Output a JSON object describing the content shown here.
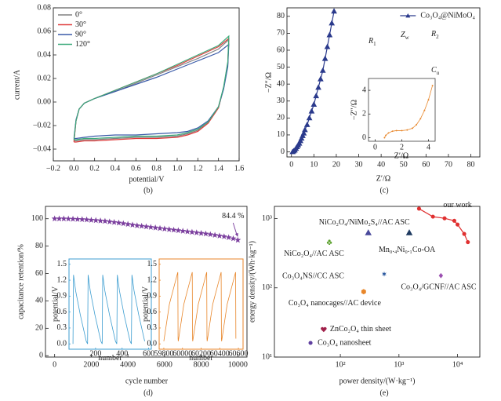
{
  "chart_data": [
    {
      "type": "line",
      "caption": "(b)",
      "xlabel": "potential/V",
      "ylabel": "current/A",
      "xlim": [
        -0.2,
        1.6
      ],
      "ylim": [
        -0.05,
        0.08
      ],
      "xticks": [
        {
          "value": -0.2,
          "label": "−0.2"
        },
        {
          "value": 0,
          "label": "0.0"
        },
        0.2,
        0.4,
        0.6,
        0.8,
        {
          "value": 1,
          "label": "1.0"
        },
        1.2,
        1.4,
        1.6
      ],
      "yticks": [
        {
          "value": -0.04,
          "label": "−0.04"
        },
        {
          "value": -0.02,
          "label": "−0.02"
        },
        {
          "value": 0,
          "label": "0.00"
        },
        0.02,
        0.04,
        0.06,
        0.08
      ],
      "legend": "upper left",
      "x": [
        0,
        0.02,
        0.05,
        0.1,
        0.2,
        0.4,
        0.6,
        0.8,
        1.0,
        1.2,
        1.4,
        1.5,
        1.49,
        1.45,
        1.4,
        1.3,
        1.2,
        1.1,
        1.0,
        0.8,
        0.6,
        0.4,
        0.2,
        0.1,
        0.02,
        0
      ],
      "series": [
        {
          "name": "0°",
          "color": "#808080",
          "line": true,
          "values": [
            -0.033,
            -0.016,
            -0.006,
            -0.001,
            0.003,
            0.009,
            0.016,
            0.023,
            0.03,
            0.037,
            0.045,
            0.053,
            0.032,
            0.012,
            -0.004,
            -0.017,
            -0.024,
            -0.027,
            -0.029,
            -0.03,
            -0.03,
            -0.031,
            -0.032,
            -0.032,
            -0.033,
            -0.033
          ]
        },
        {
          "name": "30°",
          "color": "#e03c3c",
          "line": true,
          "values": [
            -0.034,
            -0.016,
            -0.006,
            -0.001,
            0.003,
            0.01,
            0.017,
            0.024,
            0.031,
            0.039,
            0.047,
            0.054,
            0.033,
            0.012,
            -0.005,
            -0.018,
            -0.025,
            -0.028,
            -0.03,
            -0.031,
            -0.031,
            -0.032,
            -0.033,
            -0.033,
            -0.034,
            -0.034
          ]
        },
        {
          "name": "90°",
          "color": "#3a5aa8",
          "line": true,
          "values": [
            -0.031,
            -0.015,
            -0.006,
            -0.001,
            0.003,
            0.009,
            0.015,
            0.021,
            0.028,
            0.035,
            0.042,
            0.049,
            0.03,
            0.011,
            -0.004,
            -0.016,
            -0.022,
            -0.025,
            -0.026,
            -0.027,
            -0.028,
            -0.028,
            -0.029,
            -0.03,
            -0.031,
            -0.031
          ]
        },
        {
          "name": "120°",
          "color": "#3caa7a",
          "line": true,
          "values": [
            -0.032,
            -0.016,
            -0.006,
            -0.001,
            0.003,
            0.01,
            0.017,
            0.024,
            0.032,
            0.04,
            0.048,
            0.056,
            0.034,
            0.013,
            -0.004,
            -0.017,
            -0.023,
            -0.026,
            -0.028,
            -0.029,
            -0.029,
            -0.03,
            -0.031,
            -0.031,
            -0.032,
            -0.032
          ]
        }
      ]
    },
    {
      "type": "scatter",
      "caption": "(c)",
      "xlabel": "Z′/Ω",
      "ylabel": "−Z″/Ω",
      "xlim": [
        -2,
        84
      ],
      "ylim": [
        -3,
        85
      ],
      "xticks": [
        0,
        10,
        20,
        30,
        40,
        50,
        60,
        70,
        80
      ],
      "yticks": [
        0,
        10,
        20,
        30,
        40,
        50,
        60,
        70,
        80
      ],
      "legend": "upper right",
      "series": [
        {
          "name": "Co₃O₄@NiMoO₄",
          "color": "#2b3a8c",
          "marker": "triangle",
          "line": true,
          "x": [
            0.5,
            1,
            1.5,
            2,
            2.5,
            3,
            3.5,
            4,
            4.5,
            5,
            5.5,
            6,
            7,
            8,
            9,
            10,
            11,
            12,
            13,
            14,
            15,
            16,
            17,
            18,
            19
          ],
          "values": [
            0,
            0.5,
            1,
            2,
            3,
            4,
            5,
            6.5,
            8,
            9.5,
            11,
            13,
            16,
            20,
            24,
            28,
            33,
            38,
            43,
            48,
            55,
            62,
            69,
            76,
            83
          ]
        }
      ],
      "circuit": [
        {
          "symbol": "R",
          "sub": "1"
        },
        {
          "symbol": "Z",
          "sub": "w"
        },
        {
          "symbol": "R",
          "sub": "2"
        },
        {
          "symbol": "C",
          "sub": "u"
        }
      ],
      "inset": {
        "xlabel": "Z′/Ω",
        "ylabel": "−Z″/Ω",
        "xlim": [
          -0.5,
          4.5
        ],
        "ylim": [
          -0.3,
          5
        ],
        "xticks": [
          0,
          2,
          4
        ],
        "yticks": [
          0,
          2,
          4
        ],
        "series": [
          {
            "color": "#e8862a",
            "marker": "circle",
            "line": true,
            "x": [
              0.7,
              0.8,
              1,
              1.3,
              1.6,
              2,
              2.4,
              2.8,
              3.1,
              3.4,
              3.7,
              4,
              4.3
            ],
            "values": [
              0,
              0.2,
              0.4,
              0.55,
              0.6,
              0.6,
              0.65,
              0.8,
              1.1,
              1.6,
              2.3,
              3.2,
              4.4
            ]
          }
        ]
      }
    },
    {
      "type": "scatter",
      "caption": "(d)",
      "xlabel": "cycle number",
      "ylabel": "capacitance retention/%",
      "xlim": [
        -500,
        10500
      ],
      "ylim": [
        -1,
        109
      ],
      "xticks": [
        0,
        2000,
        4000,
        6000,
        8000,
        10000
      ],
      "yticks": [
        0,
        20,
        40,
        60,
        80,
        100
      ],
      "annotation": "84.4 %",
      "series": [
        {
          "color": "#7b3f9e",
          "marker": "star",
          "x": [
            0,
            250,
            500,
            750,
            1000,
            1250,
            1500,
            1750,
            2000,
            2250,
            2500,
            2750,
            3000,
            3250,
            3500,
            3750,
            4000,
            4250,
            4500,
            4750,
            5000,
            5250,
            5500,
            5750,
            6000,
            6250,
            6500,
            6750,
            7000,
            7250,
            7500,
            7750,
            8000,
            8250,
            8500,
            8750,
            9000,
            9250,
            9500,
            9750,
            10000
          ],
          "values": [
            100,
            100,
            100,
            99.9,
            99.8,
            99.6,
            99.5,
            99.3,
            99,
            98.8,
            98.5,
            98.2,
            97.8,
            97.4,
            97,
            96.5,
            96,
            95.5,
            95,
            94.6,
            94.2,
            93.8,
            93.4,
            93,
            92.6,
            92.2,
            91.8,
            91.4,
            91,
            90.6,
            90.2,
            89.8,
            89.4,
            89,
            88.5,
            88,
            87.5,
            87,
            86.3,
            85.5,
            84.4
          ]
        }
      ],
      "insets": [
        {
          "xlabel": "number",
          "ylabel": "potential/V",
          "frame": "#3c9dd0",
          "xlim": [
            0,
            620
          ],
          "ylim": [
            -0.1,
            1.6
          ],
          "xticks": [
            200,
            400,
            600
          ],
          "yticks": [
            {
              "value": 0,
              "label": "0.0"
            },
            0.3,
            0.6,
            0.9,
            1.2,
            1.5
          ],
          "series": [
            {
              "color": "#3c9dd0",
              "line": true,
              "x": [
                30,
                34,
                50,
                85,
                130,
                140,
                144,
                160,
                195,
                240,
                250,
                254,
                270,
                305,
                350,
                360,
                364,
                380,
                415,
                460,
                470,
                474,
                490,
                525,
                570
              ],
              "values": [
                0,
                1.3,
                1.0,
                0.55,
                0.05,
                0,
                1.3,
                1.0,
                0.55,
                0.05,
                0,
                1.3,
                1.0,
                0.55,
                0.05,
                0,
                1.3,
                1.0,
                0.55,
                0.05,
                0,
                1.3,
                1.0,
                0.55,
                0.05
              ]
            }
          ]
        },
        {
          "xlabel": "number",
          "ylabel": "potential/V",
          "frame": "#e8862a",
          "xlim": [
            59750,
            60650
          ],
          "ylim": [
            -0.1,
            1.6
          ],
          "xticks": [
            59800,
            60000,
            60200,
            60400,
            60600
          ],
          "yticks": [
            {
              "value": 0,
              "label": "0.0"
            },
            0.3,
            0.6,
            0.9,
            1.2,
            1.5
          ],
          "series": [
            {
              "color": "#e8862a",
              "line": true,
              "x": [
                59800,
                59860,
                59920,
                59950,
                59953,
                59955,
                60015,
                60075,
                60105,
                60108,
                60110,
                60170,
                60230,
                60260,
                60263,
                60265,
                60325,
                60385,
                60415,
                60418,
                60420,
                60480,
                60540,
                60570,
                60573
              ],
              "values": [
                0.05,
                0.75,
                1.15,
                1.35,
                0.1,
                0.05,
                0.75,
                1.15,
                1.35,
                0.1,
                0.05,
                0.75,
                1.15,
                1.35,
                0.1,
                0.05,
                0.75,
                1.15,
                1.35,
                0.1,
                0.05,
                0.75,
                1.15,
                1.35,
                0.1
              ]
            }
          ]
        }
      ]
    },
    {
      "type": "scatter",
      "caption": "(e)",
      "xlabel": "power density/(W·kg⁻¹)",
      "ylabel": "energy density/(Wh·kg⁻¹)",
      "xlog": true,
      "ylog": true,
      "xlim": [
        7.5,
        24000
      ],
      "ylim": [
        10,
        1500
      ],
      "xticks": [
        {
          "value": 100,
          "label": "10²"
        },
        {
          "value": 1000,
          "label": "10³"
        },
        {
          "value": 10000,
          "label": "10⁴"
        }
      ],
      "yticks": [
        {
          "value": 10,
          "label": "10¹"
        },
        {
          "value": 100,
          "label": "10²"
        },
        {
          "value": 1000,
          "label": "10³"
        }
      ],
      "series": [
        {
          "name": "our work",
          "color": "#e03030",
          "marker": "circle",
          "line": true,
          "x": [
            2200,
            3800,
            6000,
            8800,
            10000,
            13000,
            15000
          ],
          "values": [
            1390,
            1065,
            1010,
            930,
            820,
            600,
            457
          ]
        },
        {
          "name": "NiCo₂O₄/NiMo₂S₄//AC ASC",
          "color": "#4a4a9c",
          "marker": "triangle",
          "x": [
            300
          ],
          "values": [
            625
          ]
        },
        {
          "name": "Mn₀.₄Ni₀.₁Co-OA",
          "color": "#1f3a60",
          "marker": "triangle",
          "x": [
            1500
          ],
          "values": [
            625
          ]
        },
        {
          "name": "NiCo₂O₄//AC ASC",
          "color": "#5aa02c",
          "marker": "club",
          "x": [
            65
          ],
          "values": [
            457
          ]
        },
        {
          "name": "Co₃O₄NS//CC ASC",
          "color": "#2c5aa0",
          "marker": "asterisk",
          "x": [
            560
          ],
          "values": [
            158
          ]
        },
        {
          "name": "Co₃O₄/GCNF//AC ASC",
          "color": "#9b4fb0",
          "marker": "diamond",
          "x": [
            5200
          ],
          "values": [
            150
          ]
        },
        {
          "name": "Co₃O₄ nanocages//AC device",
          "color": "#e8862a",
          "marker": "hexagon",
          "x": [
            250
          ],
          "values": [
            88
          ]
        },
        {
          "name": "ZnCo₂O₄ thin sheet",
          "color": "#a0204a",
          "marker": "heart",
          "x": [
            52
          ],
          "values": [
            25
          ]
        },
        {
          "name": "Co₃O₄ nanosheet",
          "color": "#6040a0",
          "marker": "circle",
          "x": [
            31
          ],
          "values": [
            16
          ]
        }
      ]
    }
  ]
}
